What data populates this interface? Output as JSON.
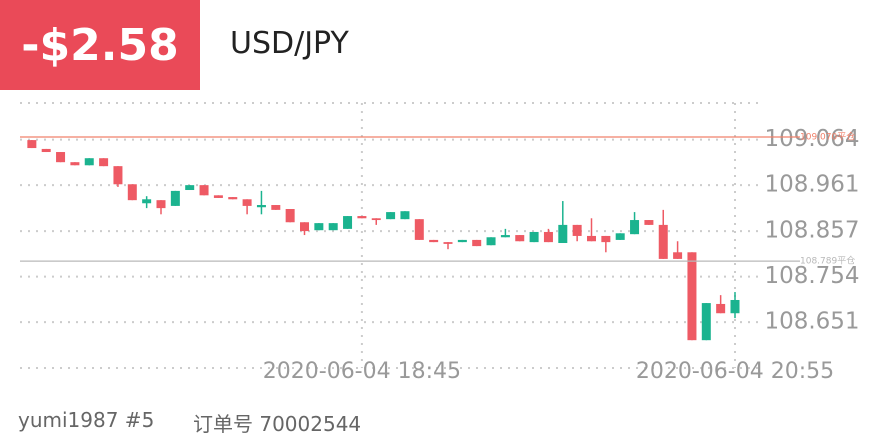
{
  "profit": "-$2.58",
  "symbol": "USD/JPY",
  "user": "yumi1987 #5",
  "order": "订单号 70002544",
  "chart_data": {
    "type": "candlestick",
    "categories": [
      null,
      null,
      null,
      null,
      null,
      null,
      null,
      null,
      null,
      null,
      null,
      null,
      null,
      null,
      null,
      null,
      null,
      null,
      null,
      null,
      null,
      null,
      null,
      "2020-06-04 18:45",
      null,
      null,
      null,
      null,
      null,
      null,
      null,
      null,
      null,
      null,
      null,
      null,
      null,
      null,
      null,
      null,
      null,
      null,
      null,
      null,
      null,
      null,
      null,
      null,
      null,
      "2020-06-04 20:55"
    ],
    "open": [
      109.063,
      109.043,
      109.036,
      109.013,
      109.006,
      109.022,
      109.004,
      108.963,
      108.92,
      108.927,
      108.914,
      108.95,
      108.961,
      108.938,
      108.934,
      108.929,
      108.911,
      108.916,
      108.907,
      108.877,
      108.859,
      108.859,
      108.862,
      108.891,
      108.886,
      108.884,
      108.884,
      108.884,
      108.837,
      108.832,
      108.832,
      108.837,
      108.825,
      108.843,
      108.848,
      108.832,
      108.855,
      108.83,
      108.871,
      108.846,
      108.846,
      108.837,
      108.85,
      108.882,
      108.871,
      108.809,
      108.809,
      108.61,
      108.692,
      108.671
    ],
    "high": [
      109.063,
      109.043,
      109.036,
      109.013,
      109.022,
      109.022,
      109.004,
      108.963,
      108.936,
      108.927,
      108.948,
      108.961,
      108.961,
      108.938,
      108.934,
      108.929,
      108.948,
      108.916,
      108.907,
      108.877,
      108.875,
      108.875,
      108.891,
      108.891,
      108.886,
      108.9,
      108.902,
      108.884,
      108.837,
      108.832,
      108.837,
      108.837,
      108.843,
      108.862,
      108.848,
      108.855,
      108.862,
      108.925,
      108.871,
      108.886,
      108.846,
      108.852,
      108.9,
      108.882,
      108.905,
      108.834,
      108.809,
      108.694,
      108.712,
      108.719
    ],
    "low": [
      109.045,
      109.036,
      109.013,
      109.006,
      109.006,
      109.004,
      108.957,
      108.927,
      108.909,
      108.895,
      108.914,
      108.95,
      108.938,
      108.932,
      108.929,
      108.895,
      108.895,
      108.905,
      108.877,
      108.848,
      108.859,
      108.859,
      108.862,
      108.886,
      108.871,
      108.884,
      108.884,
      108.837,
      108.832,
      108.816,
      108.832,
      108.823,
      108.825,
      108.843,
      108.834,
      108.832,
      108.832,
      108.83,
      108.834,
      108.834,
      108.809,
      108.837,
      108.85,
      108.871,
      108.794,
      108.794,
      108.61,
      108.61,
      108.671,
      108.66
    ],
    "close": [
      109.045,
      109.036,
      109.013,
      109.006,
      109.022,
      109.004,
      108.963,
      108.927,
      108.929,
      108.909,
      108.948,
      108.961,
      108.938,
      108.932,
      108.929,
      108.914,
      108.916,
      108.905,
      108.877,
      108.857,
      108.875,
      108.875,
      108.891,
      108.886,
      108.882,
      108.9,
      108.902,
      108.837,
      108.832,
      108.828,
      108.837,
      108.823,
      108.843,
      108.848,
      108.834,
      108.855,
      108.832,
      108.871,
      108.846,
      108.834,
      108.832,
      108.852,
      108.882,
      108.871,
      108.794,
      108.794,
      108.61,
      108.694,
      108.671,
      108.701
    ],
    "up_color": "#1bb38f",
    "down_color": "#ee5a64",
    "ylim": [
      108.547,
      109.147
    ],
    "yticks": [
      108.651,
      108.754,
      108.857,
      108.961,
      109.064
    ],
    "grid": true,
    "reference_lines": [
      {
        "value": 109.07,
        "label": "109.070平仓",
        "color": "#f0806a"
      },
      {
        "value": 108.789,
        "label": "108.789平仓",
        "color": "#b8b8b8"
      }
    ]
  }
}
